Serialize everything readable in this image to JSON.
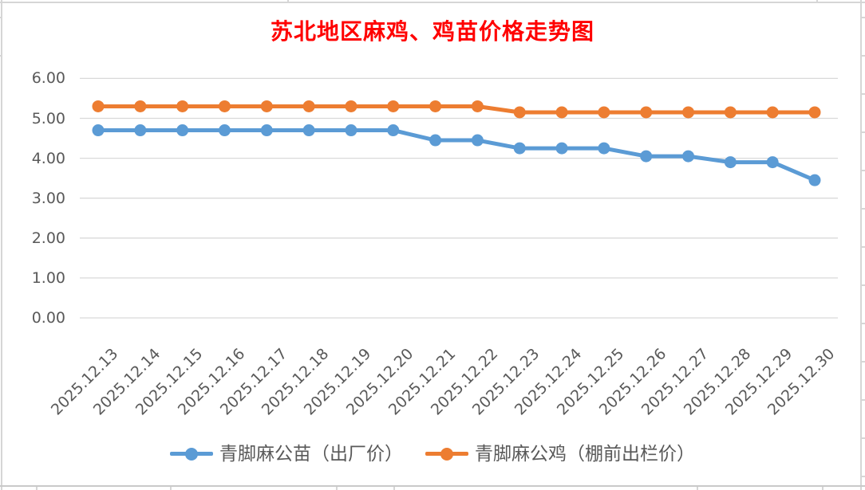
{
  "chart_data": {
    "type": "line",
    "title": "苏北地区麻鸡、鸡苗价格走势图",
    "title_color": "#FF0000",
    "categories": [
      "2025.12.13",
      "2025.12.14",
      "2025.12.15",
      "2025.12.16",
      "2025.12.17",
      "2025.12.18",
      "2025.12.19",
      "2025.12.20",
      "2025.12.21",
      "2025.12.22",
      "2025.12.23",
      "2025.12.24",
      "2025.12.25",
      "2025.12.26",
      "2025.12.27",
      "2025.12.28",
      "2025.12.29",
      "2025.12.30"
    ],
    "series": [
      {
        "name": "青脚麻公苗（出厂价）",
        "color": "#5B9BD5",
        "values": [
          4.7,
          4.7,
          4.7,
          4.7,
          4.7,
          4.7,
          4.7,
          4.7,
          4.45,
          4.45,
          4.25,
          4.25,
          4.25,
          4.05,
          4.05,
          3.9,
          3.9,
          3.45
        ]
      },
      {
        "name": "青脚麻公鸡（棚前出栏价）",
        "color": "#ED7D31",
        "values": [
          5.3,
          5.3,
          5.3,
          5.3,
          5.3,
          5.3,
          5.3,
          5.3,
          5.3,
          5.3,
          5.15,
          5.15,
          5.15,
          5.15,
          5.15,
          5.15,
          5.15,
          5.15
        ]
      }
    ],
    "ylim": [
      0,
      6
    ],
    "ytick_labels": [
      "0.00",
      "1.00",
      "2.00",
      "3.00",
      "4.00",
      "5.00",
      "6.00"
    ],
    "grid": "horizontal",
    "legend_position": "bottom",
    "axis_text_color": "#595959",
    "gridline_color": "#D9D9D9"
  }
}
